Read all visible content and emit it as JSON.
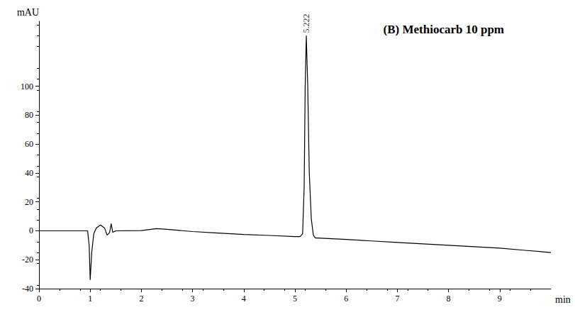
{
  "chart_data": {
    "type": "line",
    "title": "(B) Methiocarb 10 ppm",
    "x_label": "min",
    "y_label": "mAU",
    "x": [
      0,
      0.5,
      0.9,
      0.95,
      0.98,
      1.0,
      1.03,
      1.07,
      1.12,
      1.2,
      1.28,
      1.33,
      1.38,
      1.41,
      1.44,
      1.5,
      2.0,
      2.3,
      2.5,
      3.0,
      3.5,
      4.0,
      4.5,
      5.0,
      5.1,
      5.15,
      5.18,
      5.2,
      5.222,
      5.25,
      5.28,
      5.32,
      5.36,
      5.4,
      5.45,
      6.0,
      6.5,
      7.0,
      7.5,
      8.0,
      8.5,
      9.0,
      9.5,
      10.0
    ],
    "values": [
      0,
      0,
      0,
      0,
      -10,
      -34,
      -15,
      -2,
      2,
      4,
      2,
      -3,
      -1,
      5,
      -1,
      0,
      0.2,
      1.5,
      1,
      -0.5,
      -1.5,
      -2.5,
      -3.2,
      -4,
      -4,
      -2,
      30,
      100,
      135,
      100,
      40,
      8,
      -3,
      -5,
      -5,
      -6,
      -7,
      -8,
      -9,
      -10,
      -11,
      -12,
      -13.5,
      -15
    ],
    "color": "#000000",
    "xlim": [
      0,
      10
    ],
    "xticks": [
      0,
      1,
      2,
      3,
      4,
      5,
      6,
      7,
      8,
      9
    ],
    "ylim": [
      -40,
      145
    ],
    "yticks": [
      -40,
      -20,
      0,
      20,
      40,
      60,
      80,
      100
    ],
    "grid": false,
    "annotations": [
      {
        "x": 5.222,
        "y": 135,
        "text": "5.222"
      }
    ]
  }
}
